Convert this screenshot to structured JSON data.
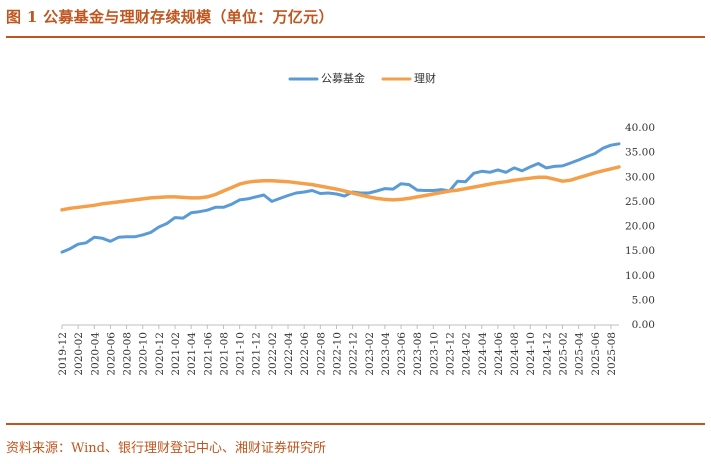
{
  "figure": {
    "title": "图 1  公募基金与理财存续规模（单位：万亿元）",
    "source": "资料来源：Wind、银行理财登记中心、湘财证券研究所",
    "accent_color": "#c0561f"
  },
  "chart_data": {
    "type": "line",
    "title": "",
    "xlabel": "",
    "ylabel": "",
    "ylim": [
      0,
      40
    ],
    "yticks": [
      "0.00",
      "5.00",
      "10.00",
      "15.00",
      "20.00",
      "25.00",
      "30.00",
      "35.00",
      "40.00"
    ],
    "y_axis_position": "right",
    "grid": false,
    "legend_position": "top-center",
    "categories": [
      "2019-12",
      "2020-01",
      "2020-02",
      "2020-03",
      "2020-04",
      "2020-05",
      "2020-06",
      "2020-07",
      "2020-08",
      "2020-09",
      "2020-10",
      "2020-11",
      "2020-12",
      "2021-01",
      "2021-02",
      "2021-03",
      "2021-04",
      "2021-05",
      "2021-06",
      "2021-07",
      "2021-08",
      "2021-09",
      "2021-10",
      "2021-11",
      "2021-12",
      "2022-01",
      "2022-02",
      "2022-03",
      "2022-04",
      "2022-05",
      "2022-06",
      "2022-07",
      "2022-08",
      "2022-09",
      "2022-10",
      "2022-11",
      "2022-12",
      "2023-01",
      "2023-02",
      "2023-03",
      "2023-04",
      "2023-05",
      "2023-06",
      "2023-07",
      "2023-08",
      "2023-09",
      "2023-10",
      "2023-11",
      "2023-12",
      "2024-01",
      "2024-02",
      "2024-03",
      "2024-04",
      "2024-05",
      "2024-06",
      "2024-07",
      "2024-08",
      "2024-09",
      "2024-10",
      "2024-11",
      "2024-12",
      "2025-01",
      "2025-02",
      "2025-03",
      "2025-04",
      "2025-05",
      "2025-06",
      "2025-07",
      "2025-08",
      "2025-09"
    ],
    "tick_labels": [
      "2019-12",
      "2020-02",
      "2020-04",
      "2020-06",
      "2020-08",
      "2020-10",
      "2020-12",
      "2021-02",
      "2021-04",
      "2021-06",
      "2021-08",
      "2021-10",
      "2021-12",
      "2022-02",
      "2022-04",
      "2022-06",
      "2022-08",
      "2022-10",
      "2022-12",
      "2023-02",
      "2023-04",
      "2023-06",
      "2023-08",
      "2023-10",
      "2023-12",
      "2024-02",
      "2024-04",
      "2024-06",
      "2024-08",
      "2024-10",
      "2024-12",
      "2025-02",
      "2025-04",
      "2025-06",
      "2025-08"
    ],
    "series": [
      {
        "name": "公募基金",
        "color": "#5b9bd5",
        "values": [
          14.8,
          15.5,
          16.4,
          16.7,
          17.8,
          17.6,
          17.0,
          17.8,
          17.9,
          17.9,
          18.3,
          18.8,
          19.9,
          20.6,
          21.8,
          21.7,
          22.8,
          23.0,
          23.3,
          23.9,
          23.9,
          24.5,
          25.4,
          25.6,
          26.0,
          26.4,
          25.1,
          25.7,
          26.3,
          26.8,
          27.0,
          27.3,
          26.7,
          26.8,
          26.6,
          26.2,
          27.0,
          26.8,
          26.8,
          27.2,
          27.7,
          27.6,
          28.7,
          28.5,
          27.4,
          27.3,
          27.3,
          27.5,
          27.2,
          29.2,
          29.1,
          30.8,
          31.2,
          31.0,
          31.5,
          31.0,
          31.9,
          31.3,
          32.1,
          32.8,
          31.9,
          32.2,
          32.3,
          32.9,
          33.5,
          34.2,
          34.8,
          35.9,
          36.5,
          36.8
        ]
      },
      {
        "name": "理财",
        "color": "#f4a04a",
        "values": [
          23.4,
          23.7,
          23.9,
          24.1,
          24.3,
          24.6,
          24.8,
          25.0,
          25.2,
          25.4,
          25.6,
          25.8,
          25.9,
          26.0,
          26.0,
          25.9,
          25.8,
          25.8,
          26.0,
          26.5,
          27.2,
          27.9,
          28.6,
          29.0,
          29.2,
          29.3,
          29.3,
          29.2,
          29.1,
          28.9,
          28.7,
          28.5,
          28.2,
          27.9,
          27.6,
          27.2,
          26.8,
          26.4,
          26.0,
          25.7,
          25.5,
          25.4,
          25.5,
          25.7,
          26.0,
          26.3,
          26.6,
          26.9,
          27.2,
          27.4,
          27.7,
          28.0,
          28.3,
          28.6,
          28.9,
          29.1,
          29.4,
          29.6,
          29.8,
          30.0,
          30.0,
          29.6,
          29.2,
          29.4,
          29.9,
          30.4,
          30.9,
          31.3,
          31.7,
          32.1
        ]
      }
    ]
  }
}
